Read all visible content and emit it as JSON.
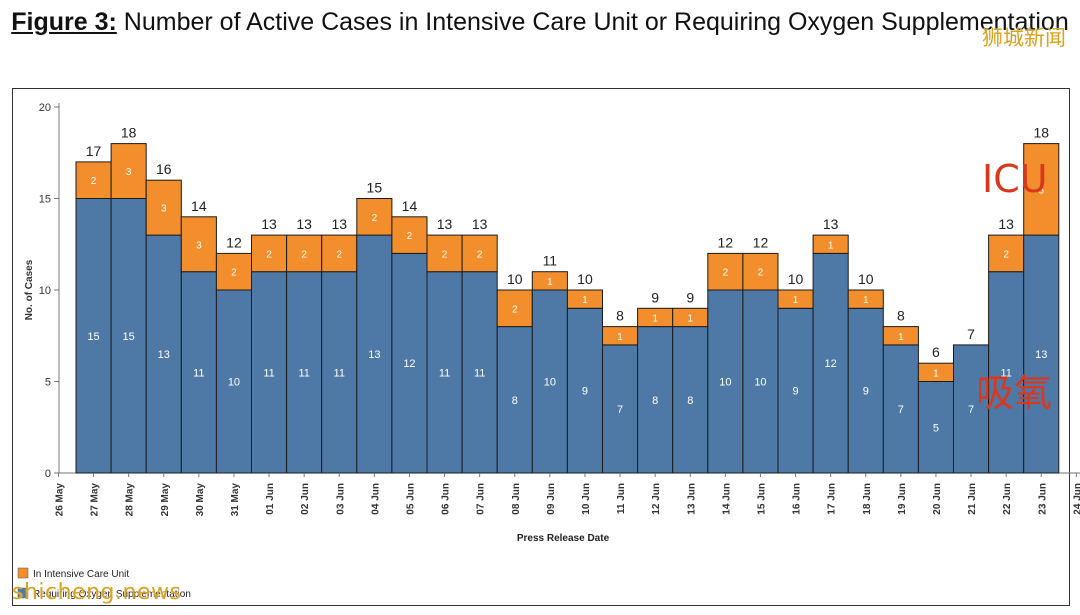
{
  "header": {
    "figure_label": "Figure 3:",
    "title": "Number of Active Cases in Intensive Care Unit or Requiring Oxygen Supplementation"
  },
  "watermarks": {
    "top_right": "狮城新闻",
    "bottom_left": "shicheng.news"
  },
  "annotations": {
    "icu": "ICU",
    "oxygen": "吸氧"
  },
  "colors": {
    "icu": "#f28e2b",
    "oxygen": "#4e79a7",
    "annotation": "#d9381e",
    "watermark": "#d9a21f"
  },
  "chart_data": {
    "type": "bar",
    "stacked": true,
    "title": "Number of Active Cases in Intensive Care Unit or Requiring Oxygen Supplementation",
    "xlabel": "Press Release Date",
    "ylabel": "No. of Cases",
    "ylim": [
      0,
      20
    ],
    "yticks": [
      0,
      5,
      10,
      15,
      20
    ],
    "grid": false,
    "legend_position": "bottom-left",
    "x_tick_labels": [
      "26 May",
      "27 May",
      "28 May",
      "29 May",
      "30 May",
      "31 May",
      "01 Jun",
      "02 Jun",
      "03 Jun",
      "04 Jun",
      "05 Jun",
      "06 Jun",
      "07 Jun",
      "08 Jun",
      "09 Jun",
      "10 Jun",
      "11 Jun",
      "12 Jun",
      "13 Jun",
      "14 Jun",
      "15 Jun",
      "16 Jun",
      "17 Jun",
      "18 Jun",
      "19 Jun",
      "20 Jun",
      "21 Jun",
      "22 Jun",
      "23 Jun",
      "24 Jun"
    ],
    "categories": [
      "27 May",
      "28 May",
      "29 May",
      "30 May",
      "31 May",
      "01 Jun",
      "02 Jun",
      "03 Jun",
      "04 Jun",
      "05 Jun",
      "06 Jun",
      "07 Jun",
      "08 Jun",
      "09 Jun",
      "10 Jun",
      "11 Jun",
      "12 Jun",
      "13 Jun",
      "14 Jun",
      "15 Jun",
      "16 Jun",
      "17 Jun",
      "18 Jun",
      "19 Jun",
      "20 Jun",
      "21 Jun",
      "22 Jun",
      "23 Jun"
    ],
    "series": [
      {
        "name": "Requiring Oxygen Supplementation",
        "color": "#4e79a7",
        "values": [
          15,
          15,
          13,
          11,
          10,
          11,
          11,
          11,
          13,
          12,
          11,
          11,
          8,
          10,
          9,
          7,
          8,
          8,
          10,
          10,
          9,
          12,
          9,
          7,
          5,
          7,
          11,
          13
        ]
      },
      {
        "name": "In Intensive Care Unit",
        "color": "#f28e2b",
        "values": [
          2,
          3,
          3,
          3,
          2,
          2,
          2,
          2,
          2,
          2,
          2,
          2,
          2,
          1,
          1,
          1,
          1,
          1,
          2,
          2,
          1,
          1,
          1,
          1,
          1,
          0,
          2,
          5
        ]
      }
    ],
    "totals": [
      17,
      18,
      16,
      14,
      12,
      13,
      13,
      13,
      15,
      14,
      13,
      13,
      10,
      11,
      10,
      8,
      9,
      9,
      12,
      12,
      10,
      13,
      10,
      8,
      6,
      7,
      13,
      18
    ],
    "legend": [
      "In Intensive Care Unit",
      "Requiring Oxygen Supplementation"
    ]
  }
}
